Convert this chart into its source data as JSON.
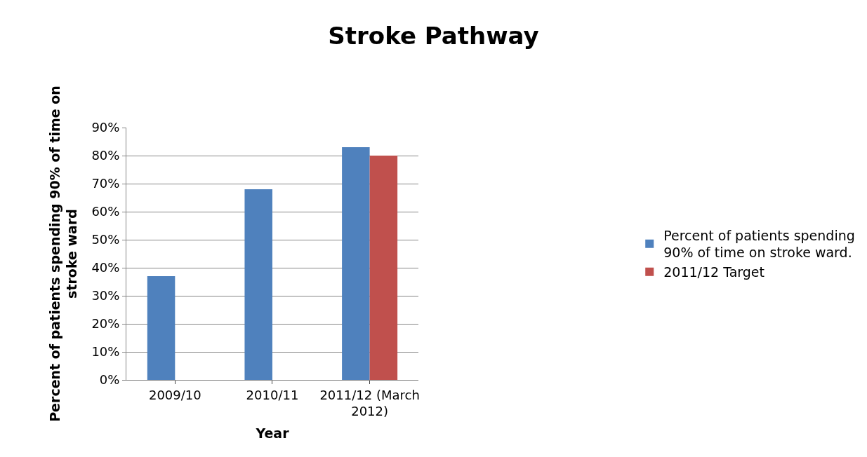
{
  "chart_data": {
    "type": "bar",
    "title": "Stroke Pathway",
    "xlabel": "Year",
    "ylabel": "Percent of patients spending 90% of time on stroke ward",
    "categories": [
      "2009/10",
      "2010/11",
      "2011/12 (March 2012)"
    ],
    "series": [
      {
        "name": "Percent of patients spending 90% of time on stroke ward.",
        "color": "#4f81bd",
        "values": [
          37,
          68,
          83
        ]
      },
      {
        "name": "2011/12 Target",
        "color": "#c0504d",
        "values": [
          null,
          null,
          80
        ]
      }
    ],
    "ylim": [
      0,
      90
    ],
    "yticks": [
      {
        "value": 0,
        "label": "0%"
      },
      {
        "value": 10,
        "label": "10%"
      },
      {
        "value": 20,
        "label": "20%"
      },
      {
        "value": 30,
        "label": "30%"
      },
      {
        "value": 40,
        "label": "40%"
      },
      {
        "value": 50,
        "label": "50%"
      },
      {
        "value": 60,
        "label": "60%"
      },
      {
        "value": 70,
        "label": "70%"
      },
      {
        "value": 80,
        "label": "80%"
      },
      {
        "value": 90,
        "label": "90%"
      }
    ],
    "grid": "y",
    "legend": "right"
  }
}
